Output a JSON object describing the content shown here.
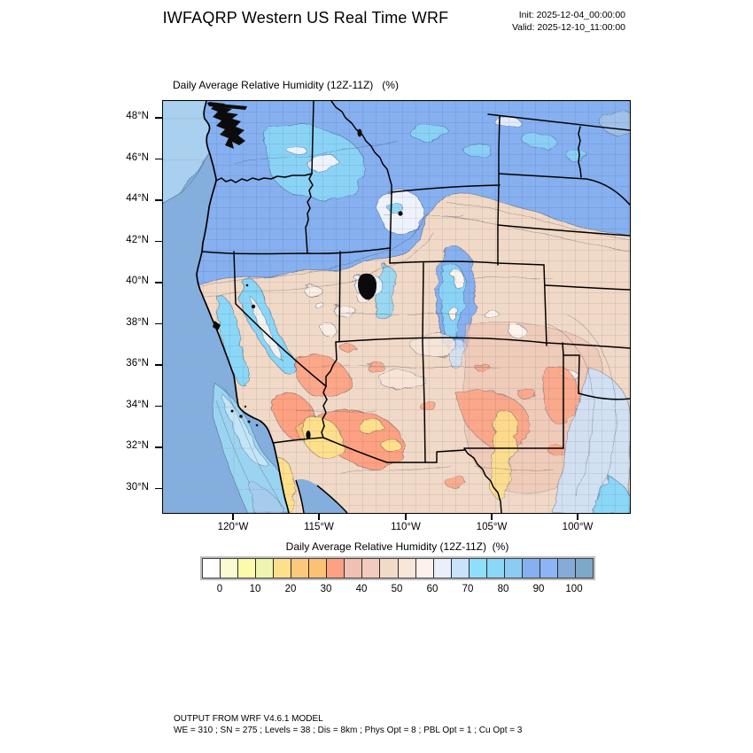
{
  "header": {
    "title": "IWFAQRP Western US Real Time WRF",
    "init_line": "Init: 2025-12-04_00:00:00",
    "valid_line": "Valid: 2025-12-10_11:00:00"
  },
  "plot": {
    "title": "Daily Average Relative Humidity (12Z-11Z)   (%)"
  },
  "axes": {
    "lat_ticks": [
      "48°N",
      "46°N",
      "44°N",
      "42°N",
      "40°N",
      "38°N",
      "36°N",
      "34°N",
      "32°N",
      "30°N"
    ],
    "lon_ticks": [
      "120°W",
      "115°W",
      "110°W",
      "105°W",
      "100°W"
    ]
  },
  "colorbar": {
    "title": "Daily Average Relative Humidity (12Z-11Z)  (%)",
    "tick_labels": [
      "0",
      "10",
      "20",
      "30",
      "40",
      "50",
      "60",
      "70",
      "80",
      "90",
      "100"
    ],
    "interval_percent": 5,
    "cell_colors": [
      "#ffffff",
      "#fbfbd1",
      "#fbfba9",
      "#eff4b1",
      "#fee08c",
      "#fcc87e",
      "#fbc175",
      "#fda182",
      "#f0c1b2",
      "#f3cabe",
      "#f1dbc8",
      "#f8e6d9",
      "#fdf1ec",
      "#ebeffb",
      "#c8e3fa",
      "#8fdffb",
      "#8bd7f8",
      "#8cccf4",
      "#86b0f0",
      "#8cb5f7",
      "#85abd9",
      "#7ea6c8"
    ]
  },
  "footer": {
    "line1": "OUTPUT FROM WRF V4.6.1 MODEL",
    "line2": "WE = 310 ; SN = 275 ; Levels = 38 ; Dis = 8km ; Phys Opt = 8 ; PBL Opt = 1 ; Cu Opt = 3"
  },
  "map_palette": {
    "ocean": "#84aedd",
    "ocean_light": "#a9d0ee",
    "ocean_band": "#aac8ec",
    "coastal_cyan": "#9dd7f3",
    "coastal_cyan_core": "#c9e8f9",
    "land": "#f1d9c7",
    "north_blue": "#86b0f0",
    "cyan": "#8bd7f8",
    "pale_blue": "#cfe2f7",
    "pale": "#eef2fb",
    "cream": "#faeee6",
    "white_patch": "#fdf4ee",
    "pale_pink": "#f8e6d9",
    "pink": "#efc2b3",
    "salmon": "#fda182",
    "yellow": "#fee08c",
    "orange": "#fbc175",
    "ne_corner": "#a9c6e8",
    "water": "#0b0b0b"
  }
}
